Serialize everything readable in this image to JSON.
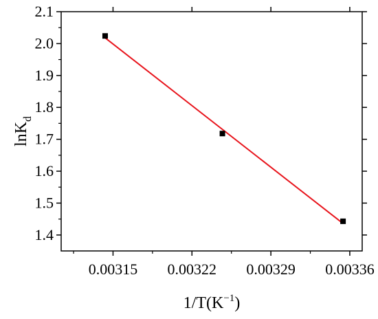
{
  "chart_data": {
    "type": "scatter",
    "xlabel": "1/T(K",
    "xlabel_sup": "−1",
    "xlabel_close": ")",
    "ylabel": "lnK",
    "ylabel_sub": "d",
    "xlim": [
      0.003104,
      0.003371
    ],
    "ylim": [
      1.35,
      2.1
    ],
    "xticks": [
      0.00315,
      0.00322,
      0.00329,
      0.00336
    ],
    "xtick_labels": [
      "0.00315",
      "0.00322",
      "0.00329",
      "0.00336"
    ],
    "yticks": [
      1.4,
      1.5,
      1.6,
      1.7,
      1.8,
      1.9,
      2.0,
      2.1
    ],
    "ytick_labels": [
      "1.4",
      "1.5",
      "1.6",
      "1.7",
      "1.8",
      "1.9",
      "2.0",
      "2.1"
    ],
    "grid": false,
    "series": [
      {
        "points": [
          {
            "x": 0.003143,
            "y": 2.024
          },
          {
            "x": 0.003247,
            "y": 1.718
          },
          {
            "x": 0.003354,
            "y": 1.443
          }
        ],
        "marker": "square",
        "color": "#000000"
      }
    ],
    "fit_line": {
      "x": [
        0.003143,
        0.003354
      ],
      "y": [
        2.018,
        1.436
      ],
      "color": "#e8141c"
    }
  }
}
